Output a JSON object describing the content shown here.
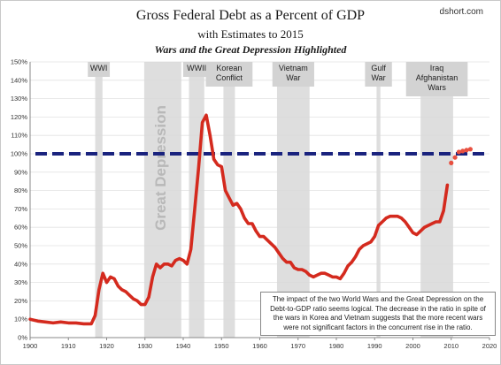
{
  "credit": "dshort.com",
  "chart_data": {
    "type": "line",
    "title": "Gross Federal Debt as a Percent of GDP",
    "subtitle": "with Estimates to 2015",
    "subtitle2": "Wars and the Great Depression Highlighted",
    "xlim": [
      1900,
      2020
    ],
    "ylim": [
      0,
      150
    ],
    "x_ticks": [
      "1900",
      "1910",
      "1920",
      "1930",
      "1940",
      "1950",
      "1960",
      "1970",
      "1980",
      "1990",
      "2000",
      "2010",
      "2020"
    ],
    "y_ticks": [
      "0%",
      "10%",
      "20%",
      "30%",
      "40%",
      "50%",
      "60%",
      "70%",
      "80%",
      "90%",
      "100%",
      "110%",
      "120%",
      "130%",
      "140%",
      "150%"
    ],
    "reference_line": {
      "value": 100,
      "color": "#1a237e",
      "style": "dashed"
    },
    "shaded_periods": [
      {
        "label": "WWI",
        "start": 1917,
        "end": 1918.9,
        "label_box": true
      },
      {
        "label": "Great Depression",
        "start": 1929.8,
        "end": 1939.5,
        "label_box": false,
        "vertical_label": true
      },
      {
        "label": "WWII",
        "start": 1941.5,
        "end": 1945.5,
        "label_box": true
      },
      {
        "label": "Korean Conflict",
        "start": 1950.5,
        "end": 1953.5,
        "label_box": true
      },
      {
        "label": "Vietnam War",
        "start": 1964.5,
        "end": 1973,
        "label_box": true
      },
      {
        "label": "Gulf War",
        "start": 1990.5,
        "end": 1991.5,
        "label_box": true
      },
      {
        "label": "Iraq Afghanistan Wars",
        "start": 2002,
        "end": 2010.5,
        "label_box": true
      }
    ],
    "series": [
      {
        "color": "#d42a1e",
        "estimate_color": "#e85040",
        "points": [
          [
            1900,
            10
          ],
          [
            1902,
            9
          ],
          [
            1904,
            8.5
          ],
          [
            1906,
            8
          ],
          [
            1908,
            8.5
          ],
          [
            1910,
            8
          ],
          [
            1912,
            8
          ],
          [
            1914,
            7.5
          ],
          [
            1916,
            7.5
          ],
          [
            1917,
            12
          ],
          [
            1918,
            26
          ],
          [
            1919,
            35
          ],
          [
            1920,
            30
          ],
          [
            1921,
            33
          ],
          [
            1922,
            32
          ],
          [
            1923,
            28
          ],
          [
            1924,
            26
          ],
          [
            1925,
            25
          ],
          [
            1926,
            23
          ],
          [
            1927,
            21
          ],
          [
            1928,
            20
          ],
          [
            1929,
            18
          ],
          [
            1930,
            18
          ],
          [
            1931,
            22
          ],
          [
            1932,
            33
          ],
          [
            1933,
            40
          ],
          [
            1934,
            38
          ],
          [
            1935,
            40
          ],
          [
            1936,
            40
          ],
          [
            1937,
            39
          ],
          [
            1938,
            42
          ],
          [
            1939,
            43
          ],
          [
            1940,
            42
          ],
          [
            1941,
            40
          ],
          [
            1942,
            48
          ],
          [
            1943,
            70
          ],
          [
            1944,
            92
          ],
          [
            1945,
            117
          ],
          [
            1946,
            121
          ],
          [
            1947,
            110
          ],
          [
            1948,
            97
          ],
          [
            1949,
            94
          ],
          [
            1950,
            93
          ],
          [
            1951,
            80
          ],
          [
            1952,
            76
          ],
          [
            1953,
            72
          ],
          [
            1954,
            73
          ],
          [
            1955,
            70
          ],
          [
            1956,
            65
          ],
          [
            1957,
            62
          ],
          [
            1958,
            62
          ],
          [
            1959,
            58
          ],
          [
            1960,
            55
          ],
          [
            1961,
            55
          ],
          [
            1962,
            53
          ],
          [
            1963,
            51
          ],
          [
            1964,
            49
          ],
          [
            1965,
            46
          ],
          [
            1966,
            43
          ],
          [
            1967,
            41
          ],
          [
            1968,
            41
          ],
          [
            1969,
            38
          ],
          [
            1970,
            37
          ],
          [
            1971,
            37
          ],
          [
            1972,
            36
          ],
          [
            1973,
            34
          ],
          [
            1974,
            33
          ],
          [
            1975,
            34
          ],
          [
            1976,
            35
          ],
          [
            1977,
            35
          ],
          [
            1978,
            34
          ],
          [
            1979,
            33
          ],
          [
            1980,
            33
          ],
          [
            1981,
            32
          ],
          [
            1982,
            35
          ],
          [
            1983,
            39
          ],
          [
            1984,
            41
          ],
          [
            1985,
            44
          ],
          [
            1986,
            48
          ],
          [
            1987,
            50
          ],
          [
            1988,
            51
          ],
          [
            1989,
            52
          ],
          [
            1990,
            55
          ],
          [
            1991,
            61
          ],
          [
            1992,
            63
          ],
          [
            1993,
            65
          ],
          [
            1994,
            66
          ],
          [
            1995,
            66
          ],
          [
            1996,
            66
          ],
          [
            1997,
            65
          ],
          [
            1998,
            63
          ],
          [
            1999,
            60
          ],
          [
            2000,
            57
          ],
          [
            2001,
            56
          ],
          [
            2002,
            58
          ],
          [
            2003,
            60
          ],
          [
            2004,
            61
          ],
          [
            2005,
            62
          ],
          [
            2006,
            63
          ],
          [
            2007,
            63
          ],
          [
            2008,
            69
          ],
          [
            2009,
            83
          ]
        ],
        "estimates": [
          [
            2010,
            95
          ],
          [
            2011,
            98
          ],
          [
            2012,
            101
          ],
          [
            2013,
            101.5
          ],
          [
            2014,
            102
          ],
          [
            2015,
            102.5
          ]
        ]
      }
    ],
    "annotation": "The impact of the two World Wars and the Great Depression on the Debt-to-GDP ratio seems logical. The decrease in the ratio in spite of the wars in Korea and Vietnam suggests that the more recent wars were not significant factors in the concurrent rise in the ratio."
  }
}
